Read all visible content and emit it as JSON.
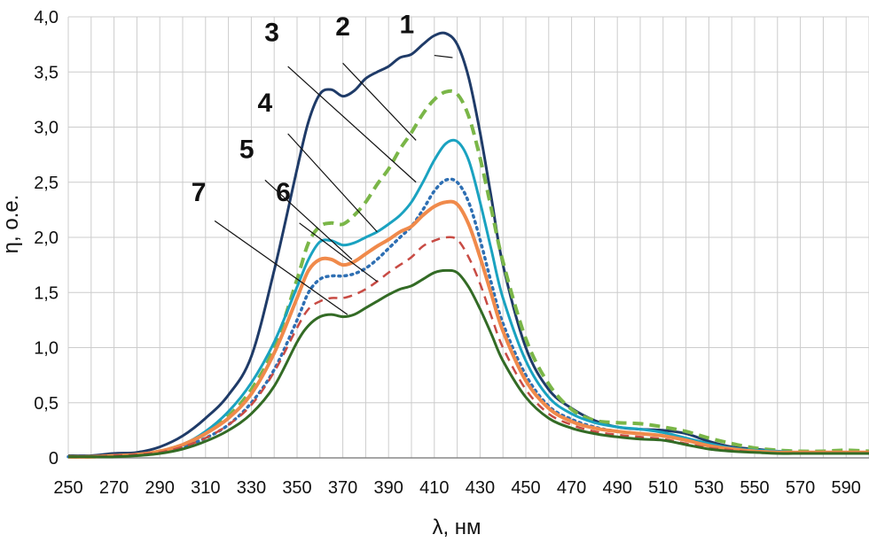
{
  "chart_data": {
    "type": "line",
    "xlabel": "λ, нм",
    "ylabel": "η, о.е.",
    "xlim": [
      250,
      600
    ],
    "ylim": [
      0,
      4.0
    ],
    "grid": true,
    "legend": "none",
    "x_ticks": [
      "250",
      "270",
      "290",
      "310",
      "330",
      "350",
      "370",
      "390",
      "410",
      "430",
      "450",
      "470",
      "490",
      "510",
      "530",
      "550",
      "570",
      "590"
    ],
    "y_ticks": [
      "0",
      "0,5",
      "1,0",
      "1,5",
      "2,0",
      "2,5",
      "3,0",
      "3,5",
      "4,0"
    ],
    "series": [
      {
        "name": "1",
        "color": "#1f3b68",
        "dash": "",
        "width": 3,
        "x": [
          250,
          260,
          270,
          280,
          290,
          300,
          310,
          320,
          330,
          340,
          350,
          355,
          360,
          365,
          370,
          375,
          380,
          385,
          390,
          395,
          400,
          405,
          410,
          415,
          420,
          425,
          430,
          435,
          440,
          450,
          460,
          470,
          480,
          490,
          500,
          510,
          520,
          530,
          540,
          550,
          560,
          570,
          580,
          590,
          600
        ],
        "y": [
          0.02,
          0.02,
          0.04,
          0.05,
          0.1,
          0.2,
          0.36,
          0.57,
          0.92,
          1.7,
          2.62,
          3.05,
          3.3,
          3.34,
          3.28,
          3.33,
          3.44,
          3.5,
          3.55,
          3.63,
          3.66,
          3.75,
          3.83,
          3.85,
          3.75,
          3.45,
          2.95,
          2.35,
          1.75,
          1.0,
          0.62,
          0.45,
          0.34,
          0.28,
          0.26,
          0.25,
          0.22,
          0.15,
          0.1,
          0.08,
          0.06,
          0.05,
          0.05,
          0.05,
          0.05
        ]
      },
      {
        "name": "2",
        "color": "#7ab648",
        "dash": "12 7",
        "width": 4,
        "x": [
          250,
          260,
          270,
          280,
          290,
          300,
          310,
          320,
          330,
          340,
          350,
          355,
          360,
          365,
          370,
          375,
          380,
          385,
          390,
          395,
          400,
          405,
          410,
          415,
          420,
          425,
          430,
          435,
          440,
          450,
          460,
          470,
          480,
          490,
          500,
          510,
          520,
          530,
          540,
          550,
          560,
          570,
          580,
          590,
          600
        ],
        "y": [
          0.01,
          0.01,
          0.02,
          0.03,
          0.06,
          0.12,
          0.22,
          0.38,
          0.62,
          1.0,
          1.62,
          1.95,
          2.1,
          2.13,
          2.12,
          2.2,
          2.32,
          2.48,
          2.62,
          2.8,
          2.95,
          3.12,
          3.25,
          3.32,
          3.3,
          3.1,
          2.72,
          2.25,
          1.78,
          1.08,
          0.67,
          0.44,
          0.34,
          0.32,
          0.31,
          0.28,
          0.24,
          0.18,
          0.13,
          0.09,
          0.07,
          0.06,
          0.06,
          0.07,
          0.06
        ]
      },
      {
        "name": "3",
        "color": "#1aa2c0",
        "dash": "",
        "width": 3,
        "x": [
          250,
          260,
          270,
          280,
          290,
          300,
          310,
          320,
          330,
          340,
          350,
          355,
          360,
          365,
          370,
          375,
          380,
          385,
          390,
          395,
          400,
          405,
          410,
          415,
          420,
          425,
          430,
          435,
          440,
          450,
          460,
          470,
          480,
          490,
          500,
          510,
          520,
          530,
          540,
          550,
          560,
          570,
          580,
          590,
          600
        ],
        "y": [
          0.01,
          0.01,
          0.02,
          0.03,
          0.06,
          0.12,
          0.24,
          0.42,
          0.68,
          1.05,
          1.55,
          1.8,
          1.96,
          1.97,
          1.93,
          1.95,
          2.0,
          2.05,
          2.12,
          2.2,
          2.32,
          2.5,
          2.7,
          2.85,
          2.87,
          2.7,
          2.32,
          1.88,
          1.45,
          0.88,
          0.55,
          0.4,
          0.32,
          0.28,
          0.26,
          0.23,
          0.18,
          0.13,
          0.09,
          0.07,
          0.06,
          0.05,
          0.05,
          0.05,
          0.05
        ]
      },
      {
        "name": "4",
        "color": "#2e6fb3",
        "dash": "2 5",
        "width": 3.5,
        "x": [
          250,
          260,
          270,
          280,
          290,
          300,
          310,
          320,
          330,
          340,
          350,
          355,
          360,
          365,
          370,
          375,
          380,
          385,
          390,
          395,
          400,
          405,
          410,
          415,
          420,
          425,
          430,
          435,
          440,
          450,
          460,
          470,
          480,
          490,
          500,
          510,
          520,
          530,
          540,
          550,
          560,
          570,
          580,
          590,
          600
        ],
        "y": [
          0.01,
          0.01,
          0.02,
          0.03,
          0.05,
          0.1,
          0.18,
          0.3,
          0.5,
          0.8,
          1.25,
          1.5,
          1.62,
          1.65,
          1.65,
          1.67,
          1.72,
          1.8,
          1.9,
          2.0,
          2.1,
          2.25,
          2.42,
          2.52,
          2.5,
          2.32,
          1.98,
          1.58,
          1.22,
          0.75,
          0.47,
          0.35,
          0.28,
          0.24,
          0.22,
          0.2,
          0.16,
          0.11,
          0.08,
          0.06,
          0.05,
          0.05,
          0.05,
          0.05,
          0.05
        ]
      },
      {
        "name": "5",
        "color": "#f08a4b",
        "dash": "",
        "width": 4,
        "x": [
          250,
          260,
          270,
          280,
          290,
          300,
          310,
          320,
          330,
          340,
          350,
          355,
          360,
          365,
          370,
          375,
          380,
          385,
          390,
          395,
          400,
          405,
          410,
          415,
          420,
          425,
          430,
          435,
          440,
          450,
          460,
          470,
          480,
          490,
          500,
          510,
          520,
          530,
          540,
          550,
          560,
          570,
          580,
          590,
          600
        ],
        "y": [
          0.01,
          0.01,
          0.02,
          0.03,
          0.06,
          0.12,
          0.22,
          0.36,
          0.58,
          0.95,
          1.45,
          1.7,
          1.8,
          1.8,
          1.75,
          1.78,
          1.85,
          1.92,
          1.98,
          2.05,
          2.1,
          2.2,
          2.28,
          2.32,
          2.3,
          2.12,
          1.82,
          1.48,
          1.15,
          0.7,
          0.45,
          0.33,
          0.27,
          0.24,
          0.22,
          0.2,
          0.16,
          0.11,
          0.08,
          0.06,
          0.05,
          0.05,
          0.05,
          0.05,
          0.05
        ]
      },
      {
        "name": "6",
        "color": "#c84b44",
        "dash": "10 7",
        "width": 2.5,
        "x": [
          250,
          260,
          270,
          280,
          290,
          300,
          310,
          320,
          330,
          340,
          350,
          355,
          360,
          365,
          370,
          375,
          380,
          385,
          390,
          395,
          400,
          405,
          410,
          415,
          420,
          425,
          430,
          435,
          440,
          450,
          460,
          470,
          480,
          490,
          500,
          510,
          520,
          530,
          540,
          550,
          560,
          570,
          580,
          590,
          600
        ],
        "y": [
          0.01,
          0.01,
          0.02,
          0.03,
          0.05,
          0.1,
          0.18,
          0.3,
          0.48,
          0.78,
          1.18,
          1.35,
          1.42,
          1.45,
          1.45,
          1.48,
          1.53,
          1.6,
          1.68,
          1.75,
          1.82,
          1.92,
          1.97,
          2.0,
          1.98,
          1.82,
          1.58,
          1.28,
          1.0,
          0.62,
          0.4,
          0.3,
          0.24,
          0.21,
          0.19,
          0.17,
          0.13,
          0.09,
          0.07,
          0.05,
          0.04,
          0.04,
          0.04,
          0.04,
          0.04
        ]
      },
      {
        "name": "7",
        "color": "#336b25",
        "dash": "",
        "width": 3,
        "x": [
          250,
          260,
          270,
          280,
          290,
          300,
          310,
          320,
          330,
          340,
          350,
          355,
          360,
          365,
          370,
          375,
          380,
          385,
          390,
          395,
          400,
          405,
          410,
          415,
          420,
          425,
          430,
          435,
          440,
          450,
          460,
          470,
          480,
          490,
          500,
          510,
          520,
          530,
          540,
          550,
          560,
          570,
          580,
          590,
          600
        ],
        "y": [
          0.01,
          0.01,
          0.01,
          0.02,
          0.04,
          0.08,
          0.15,
          0.25,
          0.4,
          0.65,
          1.05,
          1.2,
          1.28,
          1.3,
          1.28,
          1.3,
          1.36,
          1.42,
          1.48,
          1.53,
          1.56,
          1.62,
          1.68,
          1.7,
          1.68,
          1.55,
          1.35,
          1.12,
          0.88,
          0.55,
          0.36,
          0.27,
          0.22,
          0.19,
          0.17,
          0.16,
          0.12,
          0.08,
          0.06,
          0.05,
          0.04,
          0.04,
          0.04,
          0.04,
          0.04
        ]
      }
    ],
    "annotations": [
      {
        "text": "1",
        "tx": 398,
        "ty": 3.85,
        "lx1": 410,
        "ly1": 3.65,
        "lx2": 418,
        "ly2": 3.63
      },
      {
        "text": "2",
        "tx": 370,
        "ty": 3.83,
        "lx1": 370,
        "ly1": 3.58,
        "lx2": 402,
        "ly2": 2.88
      },
      {
        "text": "3",
        "tx": 339,
        "ty": 3.78,
        "lx1": 346,
        "ly1": 3.55,
        "lx2": 402,
        "ly2": 2.5
      },
      {
        "text": "4",
        "tx": 336,
        "ty": 3.14,
        "lx1": 346,
        "ly1": 2.94,
        "lx2": 385,
        "ly2": 2.05
      },
      {
        "text": "5",
        "tx": 328,
        "ty": 2.72,
        "lx1": 336,
        "ly1": 2.52,
        "lx2": 374,
        "ly2": 1.8
      },
      {
        "text": "6",
        "tx": 344,
        "ty": 2.33,
        "lx1": 351,
        "ly1": 2.13,
        "lx2": 385,
        "ly2": 1.6
      },
      {
        "text": "7",
        "tx": 307,
        "ty": 2.33,
        "lx1": 314,
        "ly1": 2.15,
        "lx2": 372,
        "ly2": 1.3
      }
    ]
  }
}
